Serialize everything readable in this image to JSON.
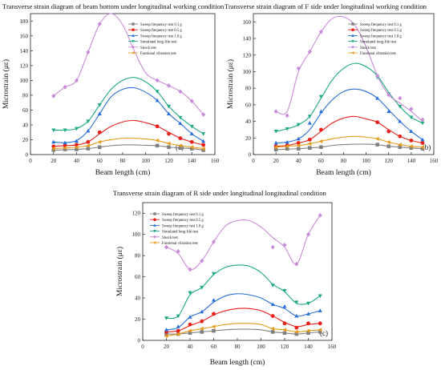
{
  "figure": {
    "chart_data": [
      {
        "type": "line",
        "title": "Transverse strain diagram of beam bottom under longitudinal working condition",
        "xlabel": "Beam length (cm)",
        "ylabel": "Microstrain (με)",
        "panel_label": "(a)",
        "xlim": [
          0,
          160
        ],
        "xticks": [
          0,
          20,
          40,
          60,
          80,
          100,
          120,
          140,
          160
        ],
        "ylim": [
          0,
          190
        ],
        "yticks": [
          0,
          20,
          40,
          60,
          80,
          100,
          120,
          140,
          160,
          180
        ],
        "x": [
          20,
          30,
          40,
          50,
          60,
          110,
          120,
          130,
          140,
          150
        ],
        "legend_position": "top-right",
        "series": [
          {
            "name": "Sweep frequency test 0.1 g",
            "color": "#808080",
            "marker": "square",
            "values": [
              6,
              7,
              7,
              8,
              10,
              12,
              10,
              9,
              8,
              6
            ],
            "curve_x": [
              20,
              30,
              40,
              50,
              60,
              70,
              80,
              90,
              100,
              110,
              120,
              130,
              140,
              150
            ],
            "curve_y": [
              6,
              6.5,
              7,
              8,
              10,
              12,
              13,
              13,
              12.5,
              12,
              10,
              9,
              8,
              6
            ]
          },
          {
            "name": "Sweep frequency test 0.5 g",
            "color": "#e8211b",
            "marker": "circle",
            "values": [
              11,
              12,
              13,
              17,
              30,
              38,
              28,
              22,
              17,
              13
            ],
            "curve_x": [
              20,
              30,
              40,
              50,
              60,
              70,
              80,
              90,
              100,
              110,
              120,
              130,
              140,
              150
            ],
            "curve_y": [
              11,
              12,
              13,
              17,
              28,
              38,
              44,
              46,
              43,
              38,
              30,
              22,
              17,
              13
            ]
          },
          {
            "name": "Sweep frequency test 1.0 g",
            "color": "#2a6fd8",
            "marker": "triangle-up",
            "values": [
              17,
              16,
              18,
              32,
              55,
              73,
              55,
              42,
              28,
              18
            ],
            "curve_x": [
              20,
              30,
              40,
              50,
              60,
              70,
              80,
              90,
              100,
              110,
              120,
              130,
              140,
              150
            ],
            "curve_y": [
              17,
              16,
              19,
              32,
              55,
              78,
              88,
              90,
              84,
              73,
              55,
              42,
              28,
              18
            ]
          },
          {
            "name": "Simulated long-life test",
            "color": "#1ea884",
            "marker": "triangle-down",
            "values": [
              33,
              33,
              35,
              45,
              67,
              85,
              65,
              50,
              38,
              28
            ],
            "curve_x": [
              20,
              30,
              40,
              50,
              60,
              70,
              80,
              90,
              100,
              110,
              120,
              130,
              140,
              150
            ],
            "curve_y": [
              33,
              33,
              35,
              45,
              67,
              88,
              100,
              104,
              98,
              85,
              65,
              50,
              38,
              28
            ]
          },
          {
            "name": "Shock test",
            "color": "#c98ad8",
            "marker": "diamond",
            "values": [
              79,
              91,
              100,
              138,
              176,
              100,
              93,
              85,
              72,
              54
            ],
            "curve_x": [
              20,
              30,
              40,
              50,
              60,
              70,
              80,
              90,
              100,
              110,
              120,
              130,
              140,
              150
            ],
            "curve_y": [
              79,
              91,
              100,
              138,
              176,
              190,
              175,
              140,
              110,
              100,
              93,
              85,
              72,
              54
            ]
          },
          {
            "name": "Funtional vibration test",
            "color": "#e69a1a",
            "marker": "triangle-left",
            "values": [
              8,
              9,
              10,
              12,
              17,
              19,
              15,
              12,
              10,
              8
            ],
            "curve_x": [
              20,
              30,
              40,
              50,
              60,
              70,
              80,
              90,
              100,
              110,
              120,
              130,
              140,
              150
            ],
            "curve_y": [
              8,
              9,
              10,
              12,
              17,
              20,
              22,
              22,
              21,
              19,
              15,
              12,
              10,
              8
            ]
          }
        ]
      },
      {
        "type": "line",
        "title": "Transverse strain diagram of F side under longitudinal working condition",
        "xlabel": "Beam length (cm)",
        "ylabel": "Microstrain (με)",
        "panel_label": "(b)",
        "xlim": [
          0,
          160
        ],
        "xticks": [
          0,
          20,
          40,
          60,
          80,
          100,
          120,
          140,
          160
        ],
        "ylim": [
          0,
          170
        ],
        "yticks": [
          0,
          20,
          40,
          60,
          80,
          100,
          120,
          140,
          160
        ],
        "x": [
          20,
          30,
          40,
          50,
          60,
          110,
          120,
          130,
          140,
          150
        ],
        "legend_position": "top-right",
        "series": [
          {
            "name": "Sweep frequency test 0.1 g",
            "color": "#808080",
            "marker": "square",
            "values": [
              6,
              7,
              7,
              8,
              9,
              12,
              10,
              9,
              8,
              7
            ],
            "curve_x": [
              20,
              30,
              40,
              50,
              60,
              70,
              80,
              90,
              100,
              110,
              120,
              130,
              140,
              150
            ],
            "curve_y": [
              6,
              6.5,
              7,
              8,
              9,
              11,
              12,
              12.5,
              12.5,
              12,
              10,
              9,
              8,
              7
            ]
          },
          {
            "name": "Sweep frequency test 0.5 g",
            "color": "#e8211b",
            "marker": "circle",
            "values": [
              10,
              11,
              14,
              18,
              30,
              39,
              28,
              22,
              17,
              14
            ],
            "curve_x": [
              20,
              30,
              40,
              50,
              60,
              70,
              80,
              90,
              100,
              110,
              120,
              130,
              140,
              150
            ],
            "curve_y": [
              10,
              11,
              14,
              18,
              28,
              38,
              44,
              46,
              43,
              39,
              30,
              22,
              17,
              14
            ]
          },
          {
            "name": "Sweep frequency test 1.0 g",
            "color": "#2a6fd8",
            "marker": "triangle-up",
            "values": [
              14,
              15,
              19,
              38,
              52,
              68,
              52,
              40,
              28,
              18
            ],
            "curve_x": [
              20,
              30,
              40,
              50,
              60,
              70,
              80,
              90,
              100,
              110,
              120,
              130,
              140,
              150
            ],
            "curve_y": [
              14,
              15,
              19,
              30,
              50,
              66,
              76,
              79,
              76,
              68,
              54,
              40,
              28,
              18
            ]
          },
          {
            "name": "Simulated long-life test",
            "color": "#1ea884",
            "marker": "triangle-down",
            "values": [
              28,
              31,
              36,
              46,
              70,
              93,
              73,
              58,
              45,
              38
            ],
            "curve_x": [
              20,
              30,
              40,
              50,
              60,
              70,
              80,
              90,
              100,
              110,
              120,
              130,
              140,
              150
            ],
            "curve_y": [
              28,
              31,
              36,
              46,
              68,
              90,
              104,
              110,
              106,
              95,
              75,
              58,
              45,
              38
            ]
          },
          {
            "name": "Shock test",
            "color": "#c98ad8",
            "marker": "diamond",
            "values": [
              52,
              47,
              104,
              124,
              148,
              95,
              72,
              68,
              55,
              42
            ],
            "curve_x": [
              20,
              30,
              40,
              50,
              60,
              70,
              80,
              90,
              100,
              110,
              120,
              130,
              140,
              150
            ],
            "curve_y": [
              52,
              52,
              100,
              124,
              148,
              164,
              166,
              156,
              130,
              95,
              72,
              62,
              52,
              40
            ]
          },
          {
            "name": "Funtional vibration test",
            "color": "#e69a1a",
            "marker": "triangle-left",
            "values": [
              9,
              10,
              11,
              13,
              16,
              19,
              15,
              12,
              10,
              9
            ],
            "curve_x": [
              20,
              30,
              40,
              50,
              60,
              70,
              80,
              90,
              100,
              110,
              120,
              130,
              140,
              150
            ],
            "curve_y": [
              9,
              10,
              11,
              13,
              16,
              19,
              21,
              22,
              21,
              19,
              15,
              12,
              10,
              9
            ]
          }
        ]
      },
      {
        "type": "line",
        "title": "Transverse strain diagram of R side under longitudinal longitudinal condition",
        "xlabel": "Beam length (cm)",
        "ylabel": "Microstrain (με)",
        "panel_label": "(c)",
        "xlim": [
          0,
          160
        ],
        "xticks": [
          0,
          20,
          40,
          60,
          80,
          100,
          120,
          140,
          160
        ],
        "ylim": [
          0,
          130
        ],
        "yticks": [
          0,
          20,
          40,
          60,
          80,
          100,
          120
        ],
        "x": [
          20,
          30,
          40,
          50,
          60,
          110,
          120,
          130,
          140,
          150
        ],
        "legend_position": "top-left",
        "series": [
          {
            "name": "Sweep frequency test 0.1 g",
            "color": "#808080",
            "marker": "square",
            "values": [
              6,
              6,
              7,
              8,
              9,
              8,
              7,
              6,
              7,
              8
            ],
            "curve_x": [
              20,
              30,
              40,
              50,
              60,
              70,
              80,
              90,
              100,
              110,
              120,
              130,
              140,
              150
            ],
            "curve_y": [
              6,
              6,
              7,
              8,
              9,
              10,
              10.5,
              10.5,
              10,
              8,
              7,
              6,
              7,
              8
            ]
          },
          {
            "name": "Sweep frequency test 0.5 g",
            "color": "#e8211b",
            "marker": "circle",
            "values": [
              8,
              9,
              15,
              18,
              25,
              23,
              16,
              12,
              16,
              16
            ],
            "curve_x": [
              20,
              30,
              40,
              50,
              60,
              70,
              80,
              90,
              100,
              110,
              120,
              130,
              140,
              150
            ],
            "curve_y": [
              8,
              9,
              14,
              18,
              24,
              28,
              30,
              30,
              28,
              23,
              17,
              13,
              15,
              16
            ]
          },
          {
            "name": "Sweep frequency test 1.0 g",
            "color": "#2a6fd8",
            "marker": "triangle-up",
            "values": [
              10,
              13,
              22,
              27,
              38,
              34,
              32,
              23,
              25,
              28
            ],
            "curve_x": [
              20,
              30,
              40,
              50,
              60,
              70,
              80,
              90,
              100,
              110,
              120,
              130,
              140,
              150
            ],
            "curve_y": [
              10,
              12,
              22,
              27,
              36,
              42,
              44,
              43,
              40,
              34,
              30,
              23,
              25,
              28
            ]
          },
          {
            "name": "Simulated long-life test",
            "color": "#1ea884",
            "marker": "triangle-down",
            "values": [
              21,
              23,
              45,
              50,
              63,
              52,
              47,
              36,
              35,
              42
            ],
            "curve_x": [
              20,
              30,
              40,
              50,
              60,
              70,
              80,
              90,
              100,
              110,
              120,
              130,
              140,
              150
            ],
            "curve_y": [
              21,
              23,
              43,
              50,
              62,
              69,
              71,
              70,
              64,
              53,
              46,
              35,
              35,
              42
            ]
          },
          {
            "name": "Shock test",
            "color": "#c98ad8",
            "marker": "diamond",
            "values": [
              88,
              84,
              67,
              75,
              93,
              88,
              90,
              72,
              100,
              118
            ],
            "curve_x": [
              20,
              30,
              40,
              50,
              60,
              70,
              80,
              90,
              100,
              110,
              120,
              130,
              140,
              150
            ],
            "curve_y": [
              88,
              82,
              67,
              75,
              93,
              108,
              113,
              113,
              107,
              97,
              88,
              72,
              100,
              118
            ]
          },
          {
            "name": "Funtional vibration test",
            "color": "#e69a1a",
            "marker": "triangle-left",
            "values": [
              4,
              6,
              9,
              11,
              13,
              11,
              10,
              8,
              9,
              10
            ],
            "curve_x": [
              20,
              30,
              40,
              50,
              60,
              70,
              80,
              90,
              100,
              110,
              120,
              130,
              140,
              150
            ],
            "curve_y": [
              4,
              6,
              9,
              11,
              13,
              15,
              16,
              16,
              15,
              11,
              10,
              8,
              9,
              10
            ]
          }
        ]
      }
    ]
  }
}
